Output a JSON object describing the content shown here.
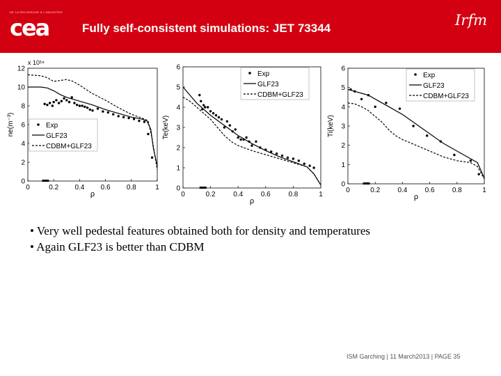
{
  "header": {
    "small_text": "DE LA RECHERCHE À L'INDUSTRIE",
    "logo_text": "cea",
    "title": "Fully self-consistent simulations: JET 73344",
    "right_logo": "Irfm"
  },
  "chart_data": [
    {
      "type": "line",
      "id": "ne",
      "ylabel": "ne(m⁻³)",
      "xlabel": "ρ",
      "exponent_label": "x 10¹⁹",
      "xlim": [
        0,
        1
      ],
      "ylim": [
        0,
        12
      ],
      "xticks": [
        "0",
        "0.2",
        "0.4",
        "0.6",
        "0.8",
        "1"
      ],
      "yticks": [
        "0",
        "2",
        "4",
        "6",
        "8",
        "10",
        "12"
      ],
      "legend": [
        "Exp",
        "GLF23",
        "CDBM+GLF23"
      ],
      "legend_position": "bottom-left",
      "series": [
        {
          "name": "GLF23",
          "style": "solid",
          "x": [
            0,
            0.1,
            0.15,
            0.2,
            0.25,
            0.3,
            0.4,
            0.5,
            0.6,
            0.7,
            0.8,
            0.88,
            0.92,
            0.95,
            0.97,
            1.0
          ],
          "y": [
            10.0,
            10.0,
            9.9,
            9.6,
            9.2,
            8.9,
            8.5,
            8.1,
            7.6,
            7.2,
            6.8,
            6.6,
            6.4,
            5.5,
            3.5,
            1.6
          ]
        },
        {
          "name": "CDBM+GLF23",
          "style": "dashed",
          "x": [
            0,
            0.1,
            0.15,
            0.2,
            0.25,
            0.3,
            0.35,
            0.4,
            0.5,
            0.6,
            0.7,
            0.8,
            0.9,
            0.93,
            0.96,
            1.0
          ],
          "y": [
            11.3,
            11.2,
            11.0,
            10.6,
            10.7,
            10.8,
            10.6,
            10.2,
            9.3,
            8.6,
            7.8,
            7.1,
            6.6,
            6.4,
            4.5,
            1.2
          ]
        },
        {
          "name": "Exp",
          "style": "points",
          "x": [
            0.13,
            0.15,
            0.17,
            0.19,
            0.2,
            0.22,
            0.24,
            0.26,
            0.28,
            0.3,
            0.32,
            0.34,
            0.36,
            0.38,
            0.4,
            0.42,
            0.44,
            0.46,
            0.48,
            0.5,
            0.54,
            0.58,
            0.62,
            0.66,
            0.7,
            0.74,
            0.78,
            0.82,
            0.86,
            0.9,
            0.93,
            0.96
          ],
          "y": [
            8.2,
            8.1,
            8.3,
            8.0,
            8.4,
            8.6,
            8.3,
            8.5,
            8.8,
            8.6,
            8.4,
            8.9,
            8.3,
            8.1,
            8.0,
            8.0,
            7.9,
            7.8,
            7.6,
            7.5,
            7.7,
            7.4,
            7.3,
            7.1,
            6.9,
            6.8,
            6.7,
            6.6,
            6.4,
            6.3,
            5.0,
            2.5
          ]
        }
      ]
    },
    {
      "type": "line",
      "id": "te",
      "ylabel": "Te(keV)",
      "xlabel": "ρ",
      "xlim": [
        0,
        1
      ],
      "ylim": [
        0,
        6
      ],
      "xticks": [
        "0",
        "0.2",
        "0.4",
        "0.6",
        "0.8",
        "1"
      ],
      "yticks": [
        "0",
        "1",
        "2",
        "3",
        "4",
        "5",
        "6"
      ],
      "legend": [
        "Exp",
        "GLF23",
        "CDBM+GLF23"
      ],
      "legend_position": "top-right",
      "series": [
        {
          "name": "GLF23",
          "style": "solid",
          "x": [
            0,
            0.05,
            0.1,
            0.2,
            0.3,
            0.4,
            0.5,
            0.6,
            0.7,
            0.8,
            0.9,
            0.95,
            1.0
          ],
          "y": [
            5.0,
            4.6,
            4.2,
            3.6,
            3.1,
            2.6,
            2.2,
            1.85,
            1.55,
            1.3,
            1.05,
            0.7,
            0.15
          ]
        },
        {
          "name": "CDBM+GLF23",
          "style": "dashed",
          "x": [
            0,
            0.05,
            0.1,
            0.15,
            0.2,
            0.25,
            0.3,
            0.35,
            0.4,
            0.5,
            0.6,
            0.7,
            0.8,
            0.9,
            0.95,
            1.0
          ],
          "y": [
            4.5,
            4.3,
            4.0,
            3.7,
            3.4,
            3.0,
            2.6,
            2.3,
            2.1,
            1.85,
            1.65,
            1.45,
            1.25,
            1.05,
            0.7,
            0.15
          ]
        },
        {
          "name": "Exp",
          "style": "points",
          "x": [
            0.12,
            0.13,
            0.14,
            0.15,
            0.16,
            0.18,
            0.2,
            0.22,
            0.24,
            0.26,
            0.28,
            0.3,
            0.32,
            0.34,
            0.36,
            0.38,
            0.4,
            0.42,
            0.44,
            0.46,
            0.48,
            0.5,
            0.53,
            0.56,
            0.6,
            0.64,
            0.68,
            0.72,
            0.76,
            0.8,
            0.84,
            0.88,
            0.92,
            0.95
          ],
          "y": [
            4.6,
            4.3,
            3.9,
            4.1,
            4.0,
            4.0,
            3.8,
            3.7,
            3.6,
            3.5,
            3.4,
            3.0,
            3.3,
            3.1,
            2.8,
            2.9,
            2.5,
            2.4,
            2.4,
            2.5,
            2.3,
            2.1,
            2.3,
            2.0,
            1.9,
            1.8,
            1.7,
            1.6,
            1.5,
            1.45,
            1.35,
            1.2,
            1.1,
            1.0
          ]
        }
      ]
    },
    {
      "type": "line",
      "id": "ti",
      "ylabel": "Ti(keV)",
      "xlabel": "ρ",
      "xlim": [
        0,
        1
      ],
      "ylim": [
        0,
        6
      ],
      "xticks": [
        "0",
        "0.2",
        "0.4",
        "0.6",
        "0.8",
        "1"
      ],
      "yticks": [
        "0",
        "1",
        "2",
        "3",
        "4",
        "5",
        "6"
      ],
      "legend": [
        "Exp",
        "GLF23",
        "CDBM+GLF23"
      ],
      "legend_position": "top-right",
      "series": [
        {
          "name": "GLF23",
          "style": "solid",
          "x": [
            0,
            0.05,
            0.1,
            0.15,
            0.2,
            0.25,
            0.3,
            0.4,
            0.5,
            0.6,
            0.7,
            0.8,
            0.9,
            0.95,
            1.0
          ],
          "y": [
            4.9,
            4.8,
            4.7,
            4.6,
            4.4,
            4.2,
            4.0,
            3.6,
            3.1,
            2.6,
            2.1,
            1.7,
            1.3,
            1.1,
            0.3
          ]
        },
        {
          "name": "CDBM+GLF23",
          "style": "dashed",
          "x": [
            0,
            0.05,
            0.1,
            0.15,
            0.2,
            0.25,
            0.3,
            0.35,
            0.4,
            0.5,
            0.6,
            0.7,
            0.8,
            0.9,
            0.95,
            1.0
          ],
          "y": [
            4.2,
            4.15,
            4.0,
            3.8,
            3.5,
            3.2,
            2.8,
            2.5,
            2.3,
            2.0,
            1.7,
            1.4,
            1.2,
            1.1,
            0.9,
            0.25
          ]
        },
        {
          "name": "Exp",
          "style": "points",
          "x": [
            0.02,
            0.05,
            0.1,
            0.15,
            0.2,
            0.28,
            0.38,
            0.48,
            0.58,
            0.68,
            0.78,
            0.9,
            0.96
          ],
          "y": [
            4.9,
            4.8,
            4.4,
            4.6,
            4.0,
            4.2,
            3.9,
            3.0,
            2.5,
            2.2,
            1.5,
            1.2,
            0.5
          ]
        }
      ]
    }
  ],
  "bullets": [
    "• Very well pedestal features obtained both for density and temperatures",
    "• Again GLF23 is better than CDBM"
  ],
  "footer": {
    "text": "ISM Garching | 11 March2013 |",
    "page": "PAGE 35"
  },
  "colors": {
    "header_red": "#d30011",
    "plot_line": "#000000"
  }
}
